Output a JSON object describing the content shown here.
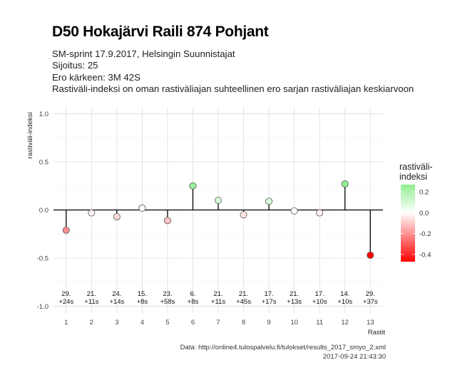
{
  "header": {
    "title": "D50 Hokajärvi Raili 874 Pohjant",
    "subtitle_lines": [
      "SM-sprint 17.9.2017, Helsingin Suunnistajat",
      "Sijoitus: 25",
      "Ero kärkeen: 3M 42S",
      "Rastiväli-indeksi on oman rastiväliajan suhteellinen ero sarjan rastiväliajan keskiarvoon"
    ]
  },
  "caption": {
    "source": "Data: http://online4.tulospalvelu.fi/tulokset/results_2017_smyo_2.xml",
    "timestamp": "2017-09-24 21:43:30"
  },
  "chart_data": {
    "type": "lollipop",
    "xlabel": "Rastit",
    "ylabel": "rastiväli-indeksi",
    "ylim": [
      -1.0,
      1.0
    ],
    "yticks": [
      -1.0,
      -0.5,
      0.0,
      0.5,
      1.0
    ],
    "ytick_labels": [
      "-1.0",
      "-0.5",
      "0.0",
      "0.5",
      "1.0"
    ],
    "grid": true,
    "x": [
      1,
      2,
      3,
      4,
      5,
      6,
      7,
      8,
      9,
      10,
      11,
      12,
      13
    ],
    "values": [
      -0.21,
      -0.03,
      -0.07,
      0.02,
      -0.11,
      0.25,
      0.1,
      -0.05,
      0.09,
      -0.01,
      -0.03,
      0.27,
      -0.47
    ],
    "point_labels": [
      [
        "29.",
        "+24s"
      ],
      [
        "21.",
        "+11s"
      ],
      [
        "24.",
        "+14s"
      ],
      [
        "15.",
        "+8s"
      ],
      [
        "23.",
        "+58s"
      ],
      [
        "6.",
        "+8s"
      ],
      [
        "21.",
        "+11s"
      ],
      [
        "21.",
        "+45s"
      ],
      [
        "17.",
        "+17s"
      ],
      [
        "21.",
        "+13s"
      ],
      [
        "17.",
        "+10s"
      ],
      [
        "14.",
        "+10s"
      ],
      [
        "29.",
        "+37s"
      ]
    ],
    "legend": {
      "title_lines": [
        "rastiväli-",
        "indeksi"
      ],
      "tick_values": [
        0.2,
        0.0,
        -0.2,
        -0.4
      ],
      "tick_labels": [
        "0.2",
        "0.0",
        "-0.2",
        "-0.4"
      ],
      "range": [
        -0.47,
        0.27
      ],
      "position": "right"
    },
    "colors": {
      "low": "#ff0000",
      "mid": "#ffffff",
      "high": "#90ee90"
    }
  }
}
